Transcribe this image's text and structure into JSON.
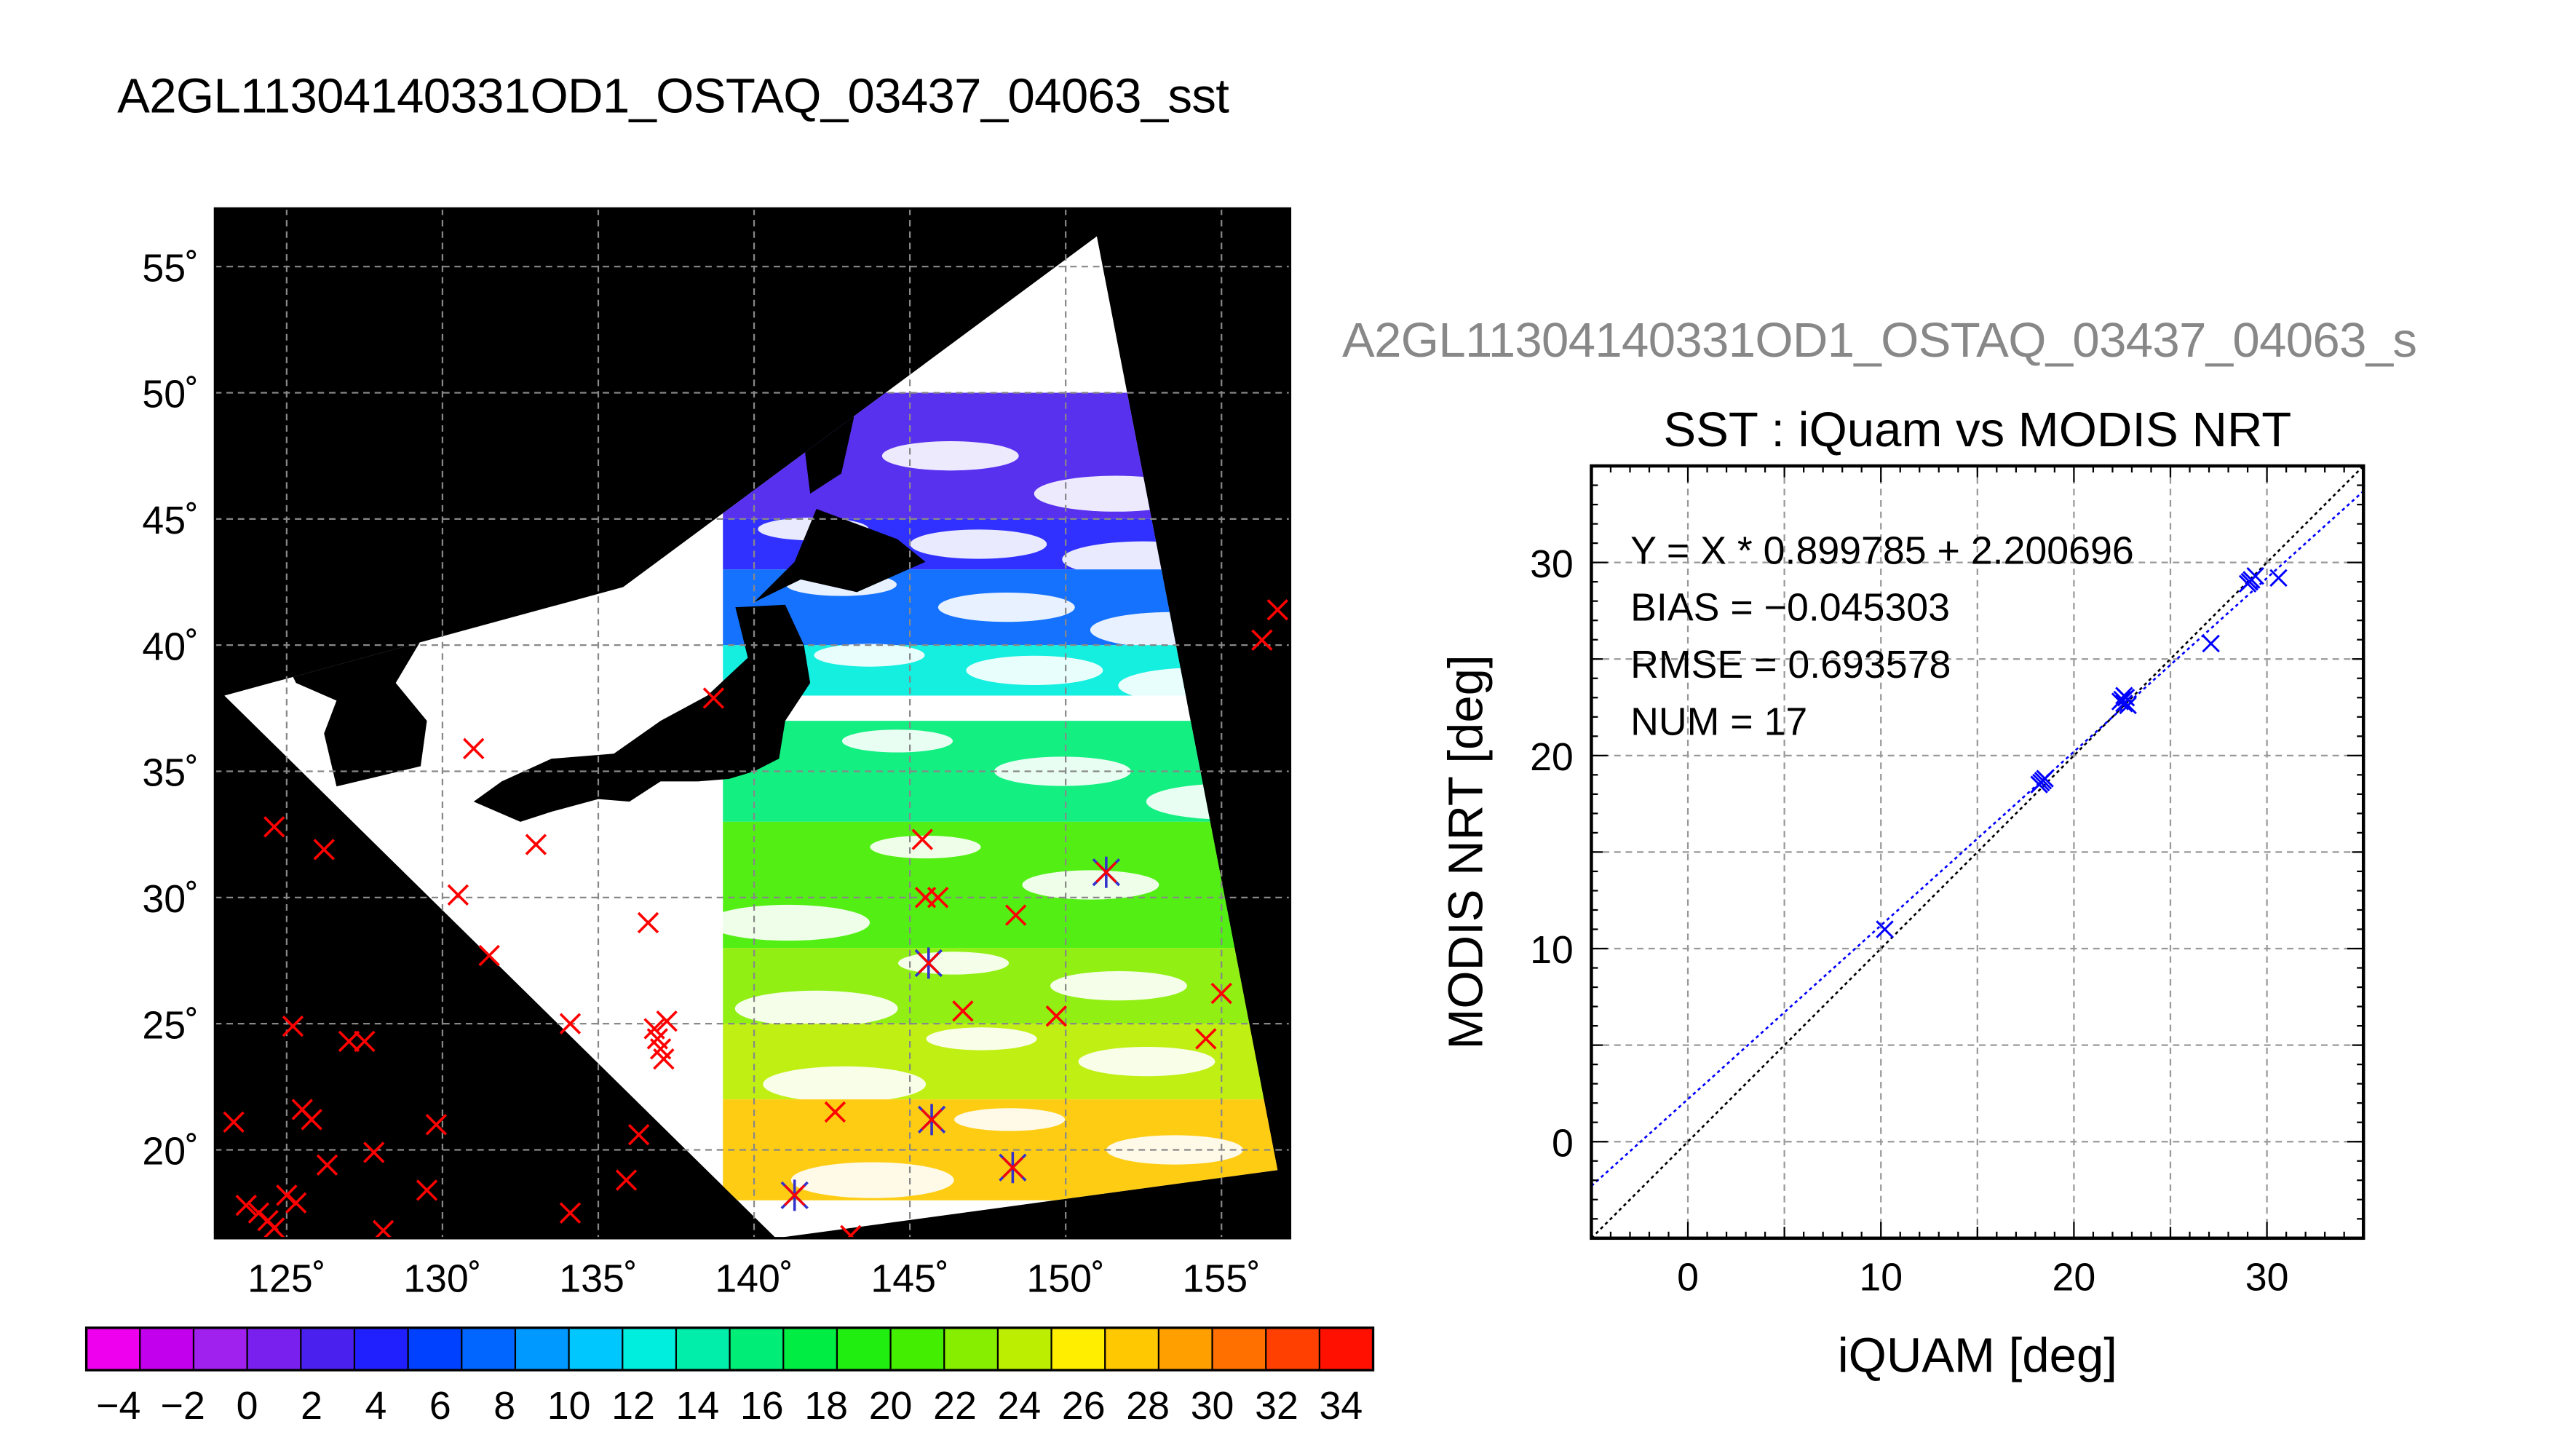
{
  "main_title": "A2GL11304140331OD1_OSTAQ_03437_04063_sst",
  "scatter_header": "A2GL11304140331OD1_OSTAQ_03437_04063_s",
  "chart_data": [
    {
      "type": "map",
      "lon_range": [
        122.7,
        157.2
      ],
      "lat_range": [
        16.5,
        57.3
      ],
      "lon_ticks": [
        125,
        130,
        135,
        140,
        145,
        150,
        155
      ],
      "lat_ticks": [
        20,
        25,
        30,
        35,
        40,
        45,
        50,
        55
      ],
      "lon_tick_labels": [
        "125˚",
        "130˚",
        "135˚",
        "140˚",
        "145˚",
        "150˚",
        "155˚"
      ],
      "lat_tick_labels": [
        "20˚",
        "25˚",
        "30˚",
        "35˚",
        "40˚",
        "45˚",
        "50˚",
        "55˚"
      ],
      "grid": true,
      "swath": {
        "corners": [
          [
            135.8,
            42.3
          ],
          [
            151.0,
            56.2
          ],
          [
            156.8,
            19.2
          ],
          [
            140.7,
            16.5
          ],
          [
            123.0,
            38.0
          ]
        ],
        "color_bands": [
          {
            "lat": [
              45,
              50
            ],
            "value": 2
          },
          {
            "lat": [
              43,
              45
            ],
            "value": 4
          },
          {
            "lat": [
              40,
              43
            ],
            "value": 8
          },
          {
            "lat": [
              38,
              40
            ],
            "value": 12
          },
          {
            "lat": [
              33,
              37
            ],
            "value": 16
          },
          {
            "lat": [
              28,
              33
            ],
            "value": 20
          },
          {
            "lat": [
              25,
              28
            ],
            "value": 22
          },
          {
            "lat": [
              22,
              25
            ],
            "value": 24
          },
          {
            "lat": [
              18,
              22
            ],
            "value": 28
          }
        ]
      },
      "ocean_color": "#000000",
      "cloud_color": "#ffffff",
      "land_color": "#000000",
      "marker_color": "#ff0000",
      "matchup_color": "#3333cc",
      "iquam_points": [
        [
          123.3,
          21.1
        ],
        [
          123.7,
          17.8
        ],
        [
          124.1,
          17.5
        ],
        [
          124.4,
          17.2
        ],
        [
          124.6,
          16.9
        ],
        [
          125.0,
          18.2
        ],
        [
          125.3,
          17.9
        ],
        [
          125.5,
          21.6
        ],
        [
          125.8,
          21.2
        ],
        [
          126.3,
          19.4
        ],
        [
          127.0,
          24.3
        ],
        [
          127.5,
          24.3
        ],
        [
          127.8,
          19.9
        ],
        [
          128.1,
          16.8
        ],
        [
          129.5,
          18.4
        ],
        [
          129.8,
          21.0
        ],
        [
          124.6,
          32.8
        ],
        [
          125.2,
          24.9
        ],
        [
          126.2,
          31.9
        ],
        [
          130.5,
          30.1
        ],
        [
          131.0,
          35.9
        ],
        [
          131.5,
          27.7
        ],
        [
          133.0,
          32.1
        ],
        [
          134.1,
          25.0
        ],
        [
          134.1,
          17.5
        ],
        [
          135.9,
          18.8
        ],
        [
          136.3,
          20.6
        ],
        [
          136.6,
          29.0
        ],
        [
          136.8,
          24.8
        ],
        [
          136.9,
          24.4
        ],
        [
          137.0,
          24.0
        ],
        [
          137.1,
          23.6
        ],
        [
          137.2,
          25.1
        ],
        [
          138.7,
          37.9
        ],
        [
          142.6,
          21.5
        ],
        [
          143.1,
          16.6
        ],
        [
          145.4,
          32.3
        ],
        [
          145.5,
          30.0
        ],
        [
          145.9,
          30.0
        ],
        [
          146.7,
          25.5
        ],
        [
          148.4,
          29.3
        ],
        [
          149.7,
          25.3
        ],
        [
          154.5,
          24.4
        ],
        [
          155.0,
          26.2
        ],
        [
          156.3,
          40.2
        ],
        [
          156.8,
          41.4
        ]
      ],
      "matchup_points": [
        [
          141.3,
          18.2
        ],
        [
          145.6,
          27.4
        ],
        [
          145.7,
          21.2
        ],
        [
          148.3,
          19.3
        ],
        [
          151.3,
          31.0
        ]
      ]
    },
    {
      "type": "scatter",
      "title": "SST : iQuam vs MODIS NRT",
      "xlabel": "iQUAM [deg]",
      "ylabel": "MODIS NRT [deg]",
      "xlim": [
        -5,
        35
      ],
      "ylim": [
        -5,
        35
      ],
      "xticks": [
        0,
        10,
        20,
        30
      ],
      "yticks": [
        0,
        10,
        20,
        30
      ],
      "grid": true,
      "stats": [
        "Y = X * 0.899785 + 2.200696",
        "BIAS = −0.045303",
        "RMSE = 0.693578",
        "NUM = 17"
      ],
      "fit": {
        "slope": 0.899785,
        "intercept": 2.200696,
        "color": "#0000ff"
      },
      "identity_line_color": "#000000",
      "point_color": "#0000ff",
      "x": [
        10.2,
        18.3,
        18.5,
        22.5,
        22.6,
        22.7,
        27.1,
        29.1,
        29.4,
        30.6,
        18.4,
        22.4,
        22.8,
        29.2,
        18.2,
        22.6,
        29.0
      ],
      "y": [
        11.0,
        18.6,
        18.8,
        22.9,
        22.7,
        23.0,
        25.8,
        29.0,
        29.3,
        29.2,
        18.7,
        22.8,
        22.6,
        29.1,
        18.5,
        23.1,
        28.9
      ]
    },
    {
      "type": "colorbar",
      "min": -5,
      "max": 35,
      "step": 2,
      "tick_values": [
        -4,
        -2,
        0,
        2,
        4,
        6,
        8,
        10,
        12,
        14,
        16,
        18,
        20,
        22,
        24,
        26,
        28,
        30,
        32,
        34
      ],
      "tick_labels": [
        "−4",
        "−2",
        "0",
        "2",
        "4",
        "6",
        "8",
        "10",
        "12",
        "14",
        "16",
        "18",
        "20",
        "22",
        "24",
        "26",
        "28",
        "30",
        "32",
        "34"
      ],
      "colors": [
        "#ee00ee",
        "#c200ee",
        "#a020ee",
        "#7a20ee",
        "#4a20ee",
        "#2020ff",
        "#0040ff",
        "#0066ff",
        "#0099ff",
        "#00c8ff",
        "#00eedd",
        "#00eeaa",
        "#00ee77",
        "#00ee44",
        "#20ee10",
        "#44ee00",
        "#88ee00",
        "#bbee00",
        "#ffee00",
        "#ffc800",
        "#ffa000",
        "#ff7000",
        "#ff4000",
        "#ff1000"
      ]
    }
  ]
}
